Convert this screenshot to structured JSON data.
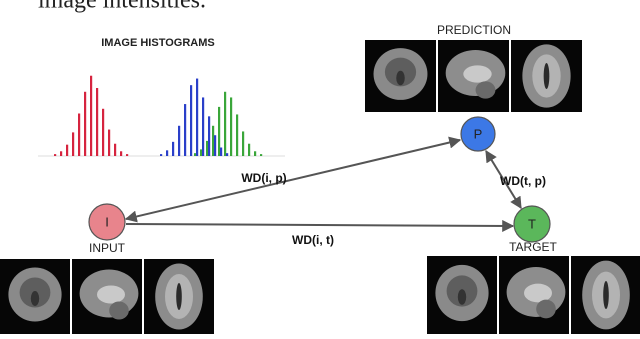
{
  "header": {
    "text": "image intensities."
  },
  "histogram": {
    "title": "IMAGE HISTOGRAMS",
    "series": [
      {
        "color": "#d6243f",
        "values": [
          2,
          5,
          12,
          25,
          45,
          68,
          85,
          72,
          50,
          28,
          13,
          5,
          2
        ]
      },
      {
        "color": "#2a3fc9",
        "values": [
          2,
          6,
          15,
          32,
          55,
          75,
          82,
          62,
          42,
          22,
          9,
          3
        ]
      },
      {
        "color": "#3aa63a",
        "values": [
          3,
          7,
          16,
          32,
          52,
          68,
          62,
          44,
          26,
          13,
          5,
          2
        ]
      }
    ]
  },
  "nodes": [
    {
      "label": "I",
      "caption": "INPUT"
    },
    {
      "label": "P",
      "caption": "PREDICTION"
    },
    {
      "label": "T",
      "caption": "TARGET"
    }
  ],
  "edges": [
    {
      "label": "WD(i, p)"
    },
    {
      "label": "WD(t, p)"
    },
    {
      "label": "WD(i, t)"
    }
  ]
}
